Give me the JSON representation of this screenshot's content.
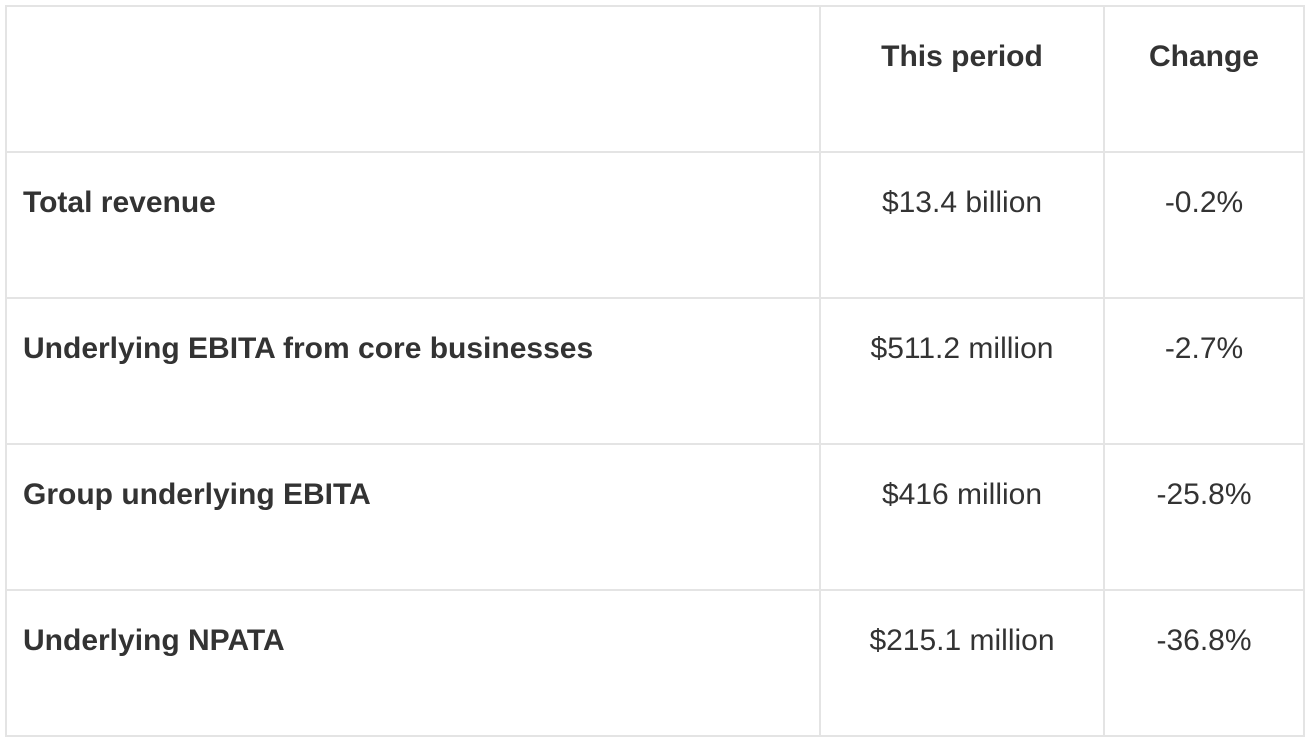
{
  "table": {
    "columns": [
      "This period",
      "Change"
    ],
    "rows": [
      [
        "Total revenue",
        "$13.4 billion",
        "-0.2%"
      ],
      [
        "Underlying EBITA from core businesses",
        "$511.2 million",
        "-2.7%"
      ],
      [
        "Group underlying EBITA",
        "$416 million",
        "-25.8%"
      ],
      [
        "Underlying NPATA",
        "$215.1 million",
        "-36.8%"
      ]
    ]
  }
}
